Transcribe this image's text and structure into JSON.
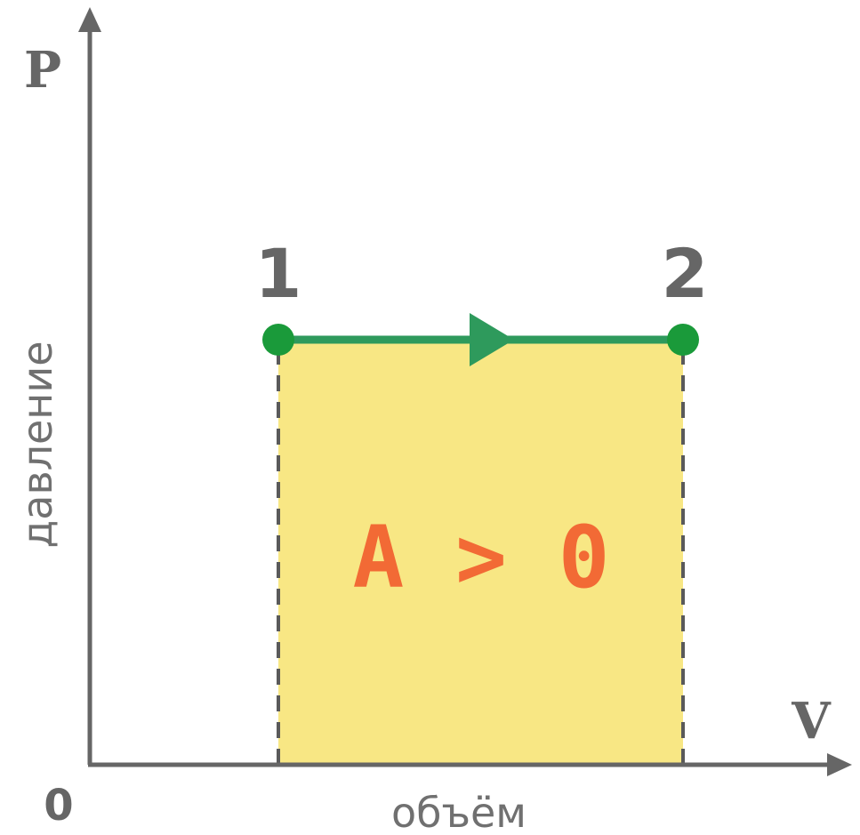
{
  "axes": {
    "y_symbol": "P",
    "y_label": "давление",
    "x_symbol": "V",
    "x_label": "объём",
    "origin": "0"
  },
  "points": {
    "start": "1",
    "end": "2"
  },
  "work_label": "A > 0",
  "colors": {
    "axis": "#666666",
    "process_line": "#2e9a5c",
    "point": "#1a9a3a",
    "area_fill": "#f8e784",
    "work_label": "#f26a35",
    "dashed": "#5a5a5a"
  }
}
